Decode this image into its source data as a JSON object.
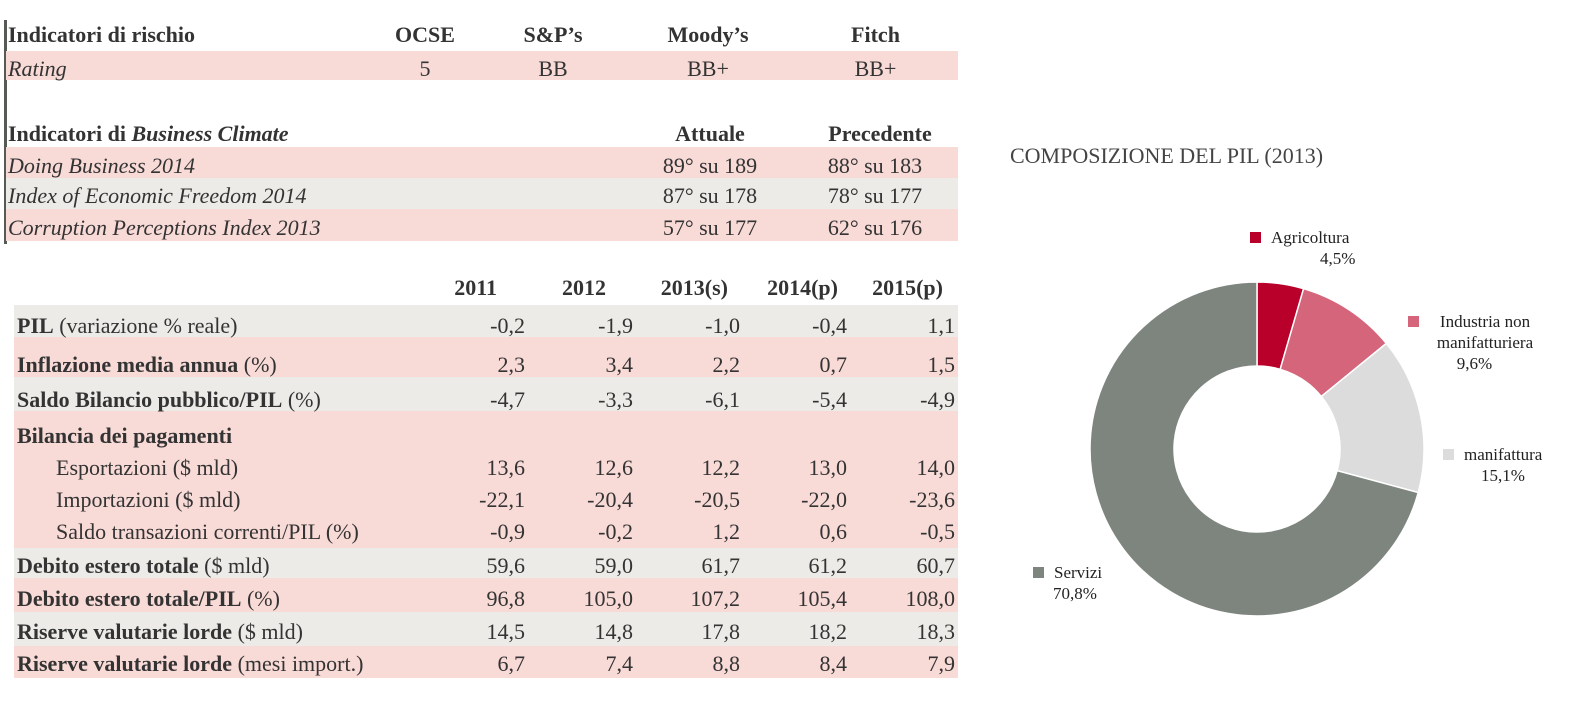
{
  "risk": {
    "header": [
      "Indicatori di rischio",
      "OCSE",
      "S&P’s",
      "Moody’s",
      "Fitch"
    ],
    "row": [
      "Rating",
      "5",
      "BB",
      "BB+",
      "BB+"
    ]
  },
  "business": {
    "header_prefix": "Indicatori di ",
    "header_em": "Business Climate",
    "col_current": "Attuale",
    "col_previous": "Precedente",
    "rows": [
      [
        "Doing Business 2014",
        "89° su 189",
        "88° su 183"
      ],
      [
        "Index of Economic Freedom 2014",
        "87° su 178",
        "78° su 177"
      ],
      [
        "Corruption Perceptions Index 2013",
        "57° su 177",
        "62° su 176"
      ]
    ]
  },
  "macro": {
    "years": [
      "2011",
      "2012",
      "2013(s)",
      "2014(p)",
      "2015(p)"
    ],
    "rows": [
      {
        "bold": "PIL",
        "rest": " (variazione % reale)",
        "values": [
          "-0,2",
          "-1,9",
          "-1,0",
          "-0,4",
          "1,1"
        ]
      },
      {
        "bold": "Inflazione media annua",
        "rest": " (%)",
        "values": [
          "2,3",
          "3,4",
          "2,2",
          "0,7",
          "1,5"
        ]
      },
      {
        "bold": "Saldo Bilancio pubblico/PIL",
        "rest": " (%)",
        "values": [
          "-4,7",
          "-3,3",
          "-6,1",
          "-5,4",
          "-4,9"
        ]
      },
      {
        "bold": "Bilancia dei pagamenti",
        "rest": "",
        "values": [
          "",
          "",
          "",
          "",
          ""
        ]
      },
      {
        "bold": "",
        "rest": "Esportazioni ($ mld)",
        "values": [
          "13,6",
          "12,6",
          "12,2",
          "13,0",
          "14,0"
        ]
      },
      {
        "bold": "",
        "rest": "Importazioni ($ mld)",
        "values": [
          "-22,1",
          "-20,4",
          "-20,5",
          "-22,0",
          "-23,6"
        ]
      },
      {
        "bold": "",
        "rest": "Saldo transazioni correnti/PIL (%)",
        "values": [
          "-0,9",
          "-0,2",
          "1,2",
          "0,6",
          "-0,5"
        ]
      },
      {
        "bold": "Debito estero totale",
        "rest": " ($ mld)",
        "values": [
          "59,6",
          "59,0",
          "61,7",
          "61,2",
          "60,7"
        ]
      },
      {
        "bold": "Debito estero totale/PIL",
        "rest": " (%)",
        "values": [
          "96,8",
          "105,0",
          "107,2",
          "105,4",
          "108,0"
        ]
      },
      {
        "bold": "Riserve valutarie lorde",
        "rest": " ($ mld)",
        "values": [
          "14,5",
          "14,8",
          "17,8",
          "18,2",
          "18,3"
        ]
      },
      {
        "bold": "Riserve valutarie lorde",
        "rest": " (mesi import.)",
        "values": [
          "6,7",
          "7,4",
          "8,8",
          "8,4",
          "7,9"
        ]
      }
    ]
  },
  "chart_data": {
    "type": "pie",
    "title": "COMPOSIZIONE DEL PIL (2013)",
    "slices": [
      {
        "name": "Agricoltura",
        "value": 4.5,
        "label": "4,5%",
        "color": "#b8002a"
      },
      {
        "name": "Industria non manifatturiera",
        "value": 9.6,
        "label": "9,6%",
        "color": "#d4657a"
      },
      {
        "name": "manifattura",
        "value": 15.1,
        "label": "15,1%",
        "color": "#dcdcdc"
      },
      {
        "name": "Servizi",
        "value": 70.8,
        "label": "70,8%",
        "color": "#7e857e"
      }
    ]
  }
}
